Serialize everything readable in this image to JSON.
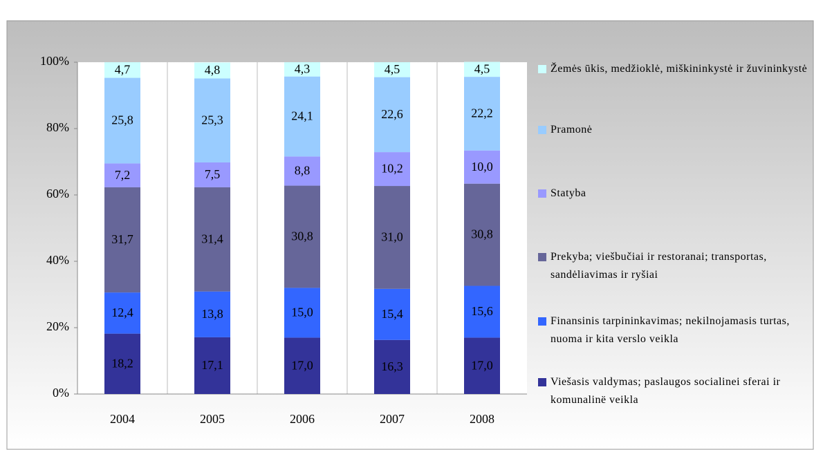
{
  "chart_data": {
    "type": "stacked_bar",
    "categories": [
      "2004",
      "2005",
      "2006",
      "2007",
      "2008"
    ],
    "series": [
      {
        "name": "Viešasis valdymas; paslaugos socialinei sferai ir komunalinë veikla",
        "color": "#333399",
        "values": [
          18.2,
          17.1,
          17.0,
          16.3,
          17.0
        ],
        "value_labels": [
          "18,2",
          "17,1",
          "17,0",
          "16,3",
          "17,0"
        ]
      },
      {
        "name": "Finansinis tarpininkavimas; nekilnojamasis turtas, nuoma ir kita verslo veikla",
        "color": "#3366ff",
        "values": [
          12.4,
          13.8,
          15.0,
          15.4,
          15.6
        ],
        "value_labels": [
          "12,4",
          "13,8",
          "15,0",
          "15,4",
          "15,6"
        ]
      },
      {
        "name": "Prekyba; viešbučiai ir restoranai; transportas, sandėliavimas ir ryšiai",
        "color": "#666699",
        "values": [
          31.7,
          31.4,
          30.8,
          31.0,
          30.8
        ],
        "value_labels": [
          "31,7",
          "31,4",
          "30,8",
          "31,0",
          "30,8"
        ]
      },
      {
        "name": "Statyba",
        "color": "#9999ff",
        "values": [
          7.2,
          7.5,
          8.8,
          10.2,
          10.0
        ],
        "value_labels": [
          "7,2",
          "7,5",
          "8,8",
          "10,2",
          "10,0"
        ]
      },
      {
        "name": "Pramonė",
        "color": "#99ccff",
        "values": [
          25.8,
          25.3,
          24.1,
          22.6,
          22.2
        ],
        "value_labels": [
          "25,8",
          "25,3",
          "24,1",
          "22,6",
          "22,2"
        ]
      },
      {
        "name": "Žemės ūkis, medžioklė, miškininkystė ir žuvininkystė",
        "color": "#ccffff",
        "values": [
          4.7,
          4.8,
          4.3,
          4.5,
          4.5
        ],
        "value_labels": [
          "4,7",
          "4,8",
          "4,3",
          "4,5",
          "4,5"
        ]
      }
    ],
    "ylim": [
      0,
      100
    ],
    "yticks": [
      {
        "value": 0,
        "label": "0%"
      },
      {
        "value": 20,
        "label": "20%"
      },
      {
        "value": 40,
        "label": "40%"
      },
      {
        "value": 60,
        "label": "60%"
      },
      {
        "value": 80,
        "label": "80%"
      },
      {
        "value": 100,
        "label": "100%"
      }
    ],
    "legend": "right"
  }
}
